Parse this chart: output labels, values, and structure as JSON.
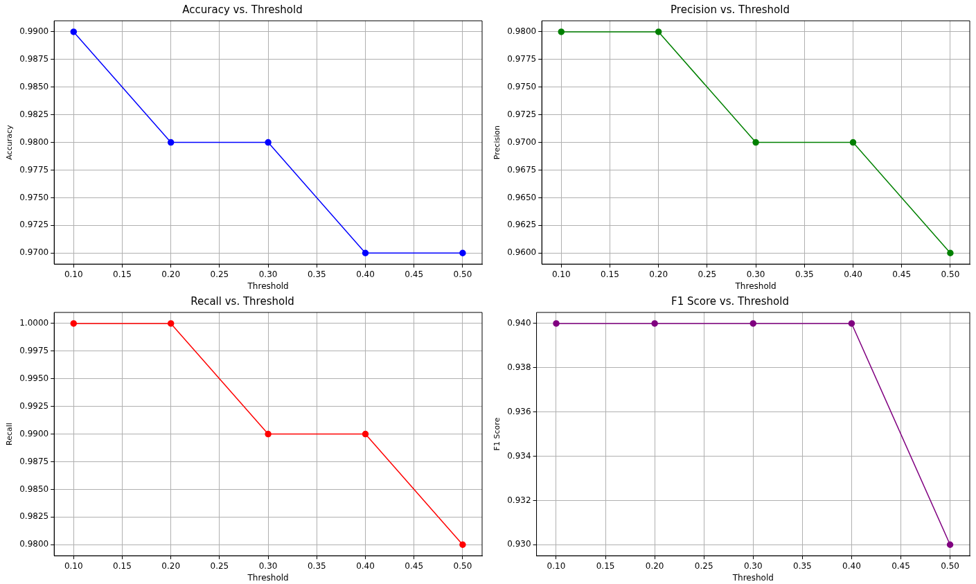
{
  "chart_data": [
    {
      "type": "line",
      "title": "Accuracy vs. Threshold",
      "xlabel": "Threshold",
      "ylabel": "Accuracy",
      "x": [
        0.1,
        0.2,
        0.3,
        0.4,
        0.5
      ],
      "series": [
        {
          "color": "#0000ff",
          "values": [
            0.99,
            0.98,
            0.98,
            0.97,
            0.97
          ]
        }
      ],
      "xlim": [
        0.08,
        0.52
      ],
      "xticks": [
        {
          "value": 0.1,
          "label": "0.10"
        },
        {
          "value": 0.15,
          "label": "0.15"
        },
        {
          "value": 0.2,
          "label": "0.20"
        },
        {
          "value": 0.25,
          "label": "0.25"
        },
        {
          "value": 0.3,
          "label": "0.30"
        },
        {
          "value": 0.35,
          "label": "0.35"
        },
        {
          "value": 0.4,
          "label": "0.40"
        },
        {
          "value": 0.45,
          "label": "0.45"
        },
        {
          "value": 0.5,
          "label": "0.50"
        }
      ],
      "ylim": [
        0.969,
        0.991
      ],
      "yticks": [
        {
          "value": 0.97,
          "label": "0.9700"
        },
        {
          "value": 0.9725,
          "label": "0.9725"
        },
        {
          "value": 0.975,
          "label": "0.9750"
        },
        {
          "value": 0.9775,
          "label": "0.9775"
        },
        {
          "value": 0.98,
          "label": "0.9800"
        },
        {
          "value": 0.9825,
          "label": "0.9825"
        },
        {
          "value": 0.985,
          "label": "0.9850"
        },
        {
          "value": 0.9875,
          "label": "0.9875"
        },
        {
          "value": 0.99,
          "label": "0.9900"
        }
      ],
      "grid": true,
      "marker": "circle"
    },
    {
      "type": "line",
      "title": "Precision vs. Threshold",
      "xlabel": "Threshold",
      "ylabel": "Precision",
      "x": [
        0.1,
        0.2,
        0.3,
        0.4,
        0.5
      ],
      "series": [
        {
          "color": "#008000",
          "values": [
            0.98,
            0.98,
            0.97,
            0.97,
            0.96
          ]
        }
      ],
      "xlim": [
        0.08,
        0.52
      ],
      "xticks": [
        {
          "value": 0.1,
          "label": "0.10"
        },
        {
          "value": 0.15,
          "label": "0.15"
        },
        {
          "value": 0.2,
          "label": "0.20"
        },
        {
          "value": 0.25,
          "label": "0.25"
        },
        {
          "value": 0.3,
          "label": "0.30"
        },
        {
          "value": 0.35,
          "label": "0.35"
        },
        {
          "value": 0.4,
          "label": "0.40"
        },
        {
          "value": 0.45,
          "label": "0.45"
        },
        {
          "value": 0.5,
          "label": "0.50"
        }
      ],
      "ylim": [
        0.959,
        0.981
      ],
      "yticks": [
        {
          "value": 0.96,
          "label": "0.9600"
        },
        {
          "value": 0.9625,
          "label": "0.9625"
        },
        {
          "value": 0.965,
          "label": "0.9650"
        },
        {
          "value": 0.9675,
          "label": "0.9675"
        },
        {
          "value": 0.97,
          "label": "0.9700"
        },
        {
          "value": 0.9725,
          "label": "0.9725"
        },
        {
          "value": 0.975,
          "label": "0.9750"
        },
        {
          "value": 0.9775,
          "label": "0.9775"
        },
        {
          "value": 0.98,
          "label": "0.9800"
        }
      ],
      "grid": true,
      "marker": "circle"
    },
    {
      "type": "line",
      "title": "Recall vs. Threshold",
      "xlabel": "Threshold",
      "ylabel": "Recall",
      "x": [
        0.1,
        0.2,
        0.3,
        0.4,
        0.5
      ],
      "series": [
        {
          "color": "#ff0000",
          "values": [
            1.0,
            1.0,
            0.99,
            0.99,
            0.98
          ]
        }
      ],
      "xlim": [
        0.08,
        0.52
      ],
      "xticks": [
        {
          "value": 0.1,
          "label": "0.10"
        },
        {
          "value": 0.15,
          "label": "0.15"
        },
        {
          "value": 0.2,
          "label": "0.20"
        },
        {
          "value": 0.25,
          "label": "0.25"
        },
        {
          "value": 0.3,
          "label": "0.30"
        },
        {
          "value": 0.35,
          "label": "0.35"
        },
        {
          "value": 0.4,
          "label": "0.40"
        },
        {
          "value": 0.45,
          "label": "0.45"
        },
        {
          "value": 0.5,
          "label": "0.50"
        }
      ],
      "ylim": [
        0.979,
        1.001
      ],
      "yticks": [
        {
          "value": 0.98,
          "label": "0.9800"
        },
        {
          "value": 0.9825,
          "label": "0.9825"
        },
        {
          "value": 0.985,
          "label": "0.9850"
        },
        {
          "value": 0.9875,
          "label": "0.9875"
        },
        {
          "value": 0.99,
          "label": "0.9900"
        },
        {
          "value": 0.9925,
          "label": "0.9925"
        },
        {
          "value": 0.995,
          "label": "0.9950"
        },
        {
          "value": 0.9975,
          "label": "0.9975"
        },
        {
          "value": 1.0,
          "label": "1.0000"
        }
      ],
      "grid": true,
      "marker": "circle"
    },
    {
      "type": "line",
      "title": "F1 Score vs. Threshold",
      "xlabel": "Threshold",
      "ylabel": "F1 Score",
      "x": [
        0.1,
        0.2,
        0.3,
        0.4,
        0.5
      ],
      "series": [
        {
          "color": "#800080",
          "values": [
            0.94,
            0.94,
            0.94,
            0.94,
            0.93
          ]
        }
      ],
      "xlim": [
        0.08,
        0.52
      ],
      "xticks": [
        {
          "value": 0.1,
          "label": "0.10"
        },
        {
          "value": 0.15,
          "label": "0.15"
        },
        {
          "value": 0.2,
          "label": "0.20"
        },
        {
          "value": 0.25,
          "label": "0.25"
        },
        {
          "value": 0.3,
          "label": "0.30"
        },
        {
          "value": 0.35,
          "label": "0.35"
        },
        {
          "value": 0.4,
          "label": "0.40"
        },
        {
          "value": 0.45,
          "label": "0.45"
        },
        {
          "value": 0.5,
          "label": "0.50"
        }
      ],
      "ylim": [
        0.9295,
        0.9405
      ],
      "yticks": [
        {
          "value": 0.93,
          "label": "0.930"
        },
        {
          "value": 0.932,
          "label": "0.932"
        },
        {
          "value": 0.934,
          "label": "0.934"
        },
        {
          "value": 0.936,
          "label": "0.936"
        },
        {
          "value": 0.938,
          "label": "0.938"
        },
        {
          "value": 0.94,
          "label": "0.940"
        }
      ],
      "grid": true,
      "marker": "circle"
    }
  ]
}
